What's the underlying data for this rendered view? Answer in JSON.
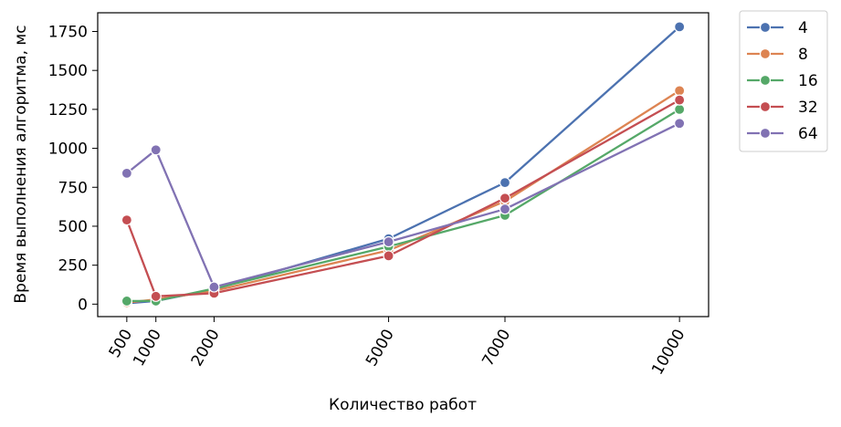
{
  "chart_data": {
    "type": "line",
    "xlabel": "Количество работ",
    "ylabel": "Время выполнения алгоритма, мс",
    "x": [
      500,
      1000,
      2000,
      5000,
      7000,
      10000
    ],
    "x_tick_labels": [
      "500",
      "1000",
      "2000",
      "5000",
      "7000",
      "10000"
    ],
    "xlim": [
      0,
      10500
    ],
    "ylim": [
      -80,
      1870
    ],
    "y_ticks": [
      0,
      250,
      500,
      750,
      1000,
      1250,
      1500,
      1750
    ],
    "y_tick_labels": [
      "0",
      "250",
      "500",
      "750",
      "1000",
      "1250",
      "1500",
      "1750"
    ],
    "grid": false,
    "legend_position": "outside-right-top",
    "series": [
      {
        "name": "4",
        "color": "#4c72b0",
        "values": [
          5,
          20,
          95,
          420,
          780,
          1780
        ]
      },
      {
        "name": "8",
        "color": "#dd8452",
        "values": [
          10,
          30,
          85,
          345,
          660,
          1370
        ]
      },
      {
        "name": "16",
        "color": "#55a868",
        "values": [
          20,
          20,
          100,
          370,
          570,
          1250
        ]
      },
      {
        "name": "32",
        "color": "#c44e52",
        "values": [
          540,
          50,
          70,
          310,
          680,
          1310
        ]
      },
      {
        "name": "64",
        "color": "#8172b3",
        "values": [
          840,
          990,
          110,
          400,
          610,
          1160
        ]
      }
    ]
  }
}
